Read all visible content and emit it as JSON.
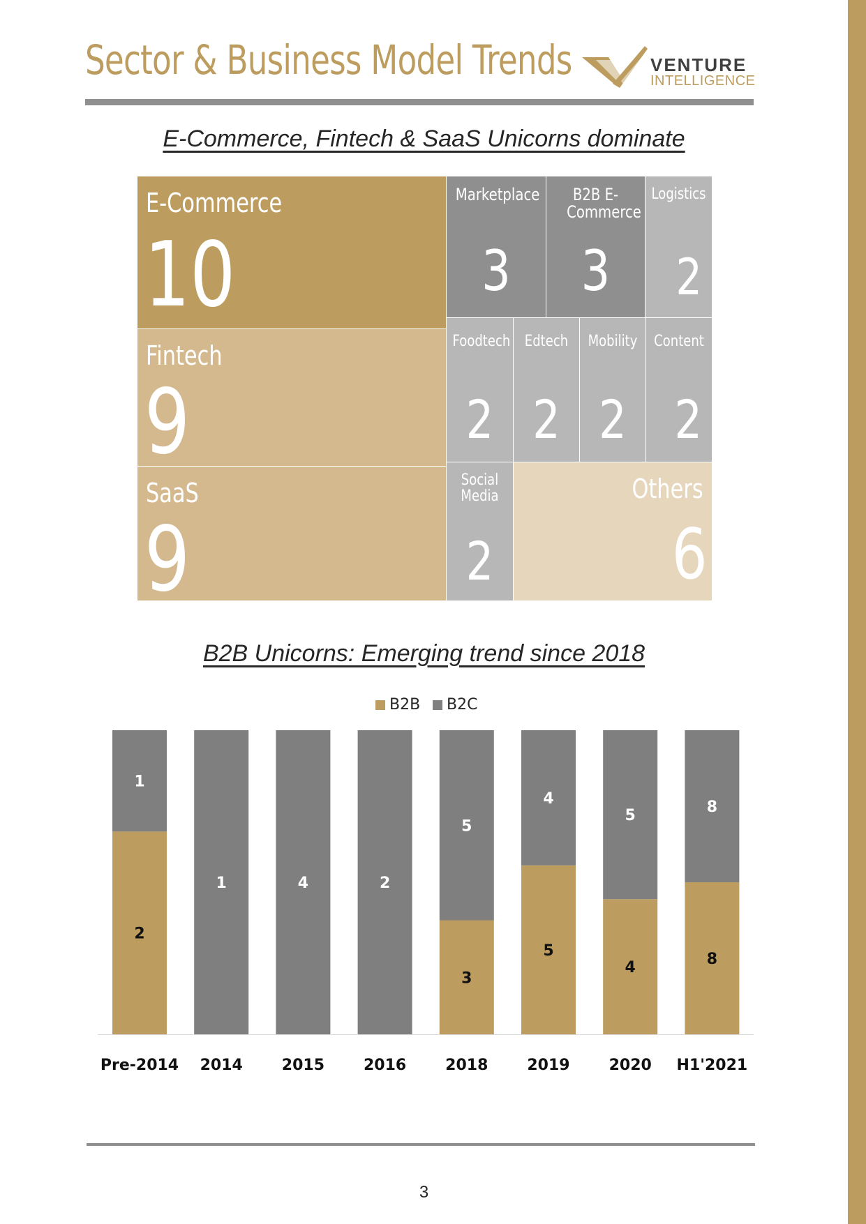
{
  "header": {
    "title": "Sector & Business Model Trends",
    "logo_line1": "VENTURE",
    "logo_line2": "INTELLIGENCE"
  },
  "colors": {
    "gold": "#bd9d5f",
    "tan": "#d4b98f",
    "cream": "#e6d6bb",
    "dark_gray": "#8f8f8f",
    "light_gray": "#b7b7b7",
    "b2c_gray": "#7f7f7f"
  },
  "chart_data": [
    {
      "type": "treemap",
      "title": "E-Commerce, Fintech & SaaS Unicorns dominate",
      "items": [
        {
          "label": "E-Commerce",
          "value": 10
        },
        {
          "label": "Fintech",
          "value": 9
        },
        {
          "label": "SaaS",
          "value": 9
        },
        {
          "label": "Marketplace",
          "value": 3
        },
        {
          "label": "B2B E-Commerce",
          "value": 3
        },
        {
          "label": "Logistics",
          "value": 2
        },
        {
          "label": "Foodtech",
          "value": 2
        },
        {
          "label": "Edtech",
          "value": 2
        },
        {
          "label": "Mobility",
          "value": 2
        },
        {
          "label": "Content",
          "value": 2
        },
        {
          "label": "Social Media",
          "value": 2
        },
        {
          "label": "Others",
          "value": 6
        }
      ]
    },
    {
      "type": "bar",
      "stacked": true,
      "normalized": true,
      "title": "B2B Unicorns: Emerging trend since 2018",
      "categories": [
        "Pre-2014",
        "2014",
        "2015",
        "2016",
        "2018",
        "2019",
        "2020",
        "H1'2021"
      ],
      "series": [
        {
          "name": "B2B",
          "values": [
            2,
            0,
            0,
            0,
            3,
            5,
            4,
            8
          ]
        },
        {
          "name": "B2C",
          "values": [
            1,
            1,
            4,
            2,
            5,
            4,
            5,
            8
          ]
        }
      ],
      "legend": "top-center",
      "grid": false
    }
  ],
  "footer": {
    "page_number": "3"
  }
}
